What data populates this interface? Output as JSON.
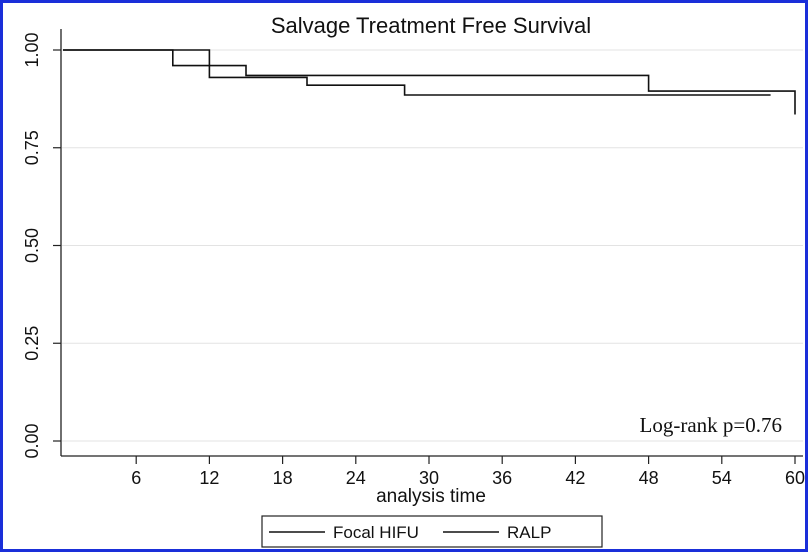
{
  "chart_data": {
    "type": "line",
    "title": "Salvage Treatment Free Survival",
    "xlabel": "analysis time",
    "ylabel": "",
    "xlim": [
      0,
      60
    ],
    "ylim": [
      0,
      1
    ],
    "x_ticks": [
      "6",
      "12",
      "18",
      "24",
      "30",
      "36",
      "42",
      "48",
      "54",
      "60"
    ],
    "y_ticks": [
      "0.00",
      "0.25",
      "0.50",
      "0.75",
      "1.00"
    ],
    "grid": true,
    "legend_position": "bottom",
    "annotation": "Log-rank p=0.76",
    "series": [
      {
        "name": "Focal HIFU",
        "x": [
          0,
          12,
          12,
          15,
          15,
          48,
          48,
          60,
          60
        ],
        "y": [
          1.0,
          1.0,
          0.96,
          0.96,
          0.935,
          0.935,
          0.895,
          0.895,
          0.835
        ],
        "color": "#111111"
      },
      {
        "name": "RALP",
        "x": [
          0,
          9,
          9,
          12,
          12,
          20,
          20,
          28,
          28,
          58
        ],
        "y": [
          1.0,
          1.0,
          0.96,
          0.96,
          0.93,
          0.93,
          0.91,
          0.91,
          0.885,
          0.885
        ],
        "color": "#111111"
      }
    ]
  }
}
